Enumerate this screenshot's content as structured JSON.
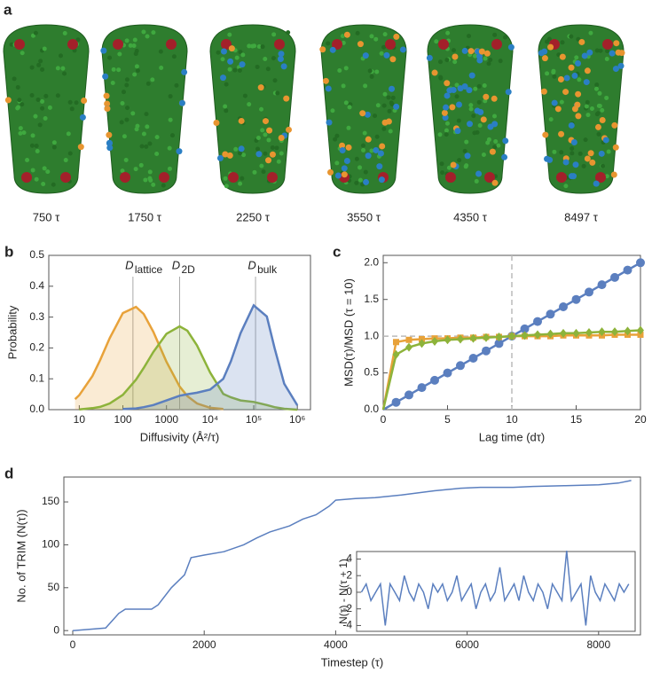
{
  "panel_a": {
    "panel_label": "a",
    "frames": [
      "750 τ",
      "1750 τ",
      "2250 τ",
      "3550 τ",
      "4350 τ",
      "8497 τ"
    ]
  },
  "chart_data": [
    {
      "type": "area",
      "panel_label": "b",
      "x_label": "Diffusivity (Å²/τ)",
      "y_label": "Probability",
      "xscale": "log",
      "xlim": [
        2,
        2000000
      ],
      "ylim": [
        0,
        0.5
      ],
      "xticks": [
        10,
        100,
        1000,
        {
          "value": 10000,
          "label": "10⁴"
        },
        {
          "value": 100000,
          "label": "10⁵"
        },
        {
          "value": 1000000,
          "label": "10⁶"
        }
      ],
      "yticks": [
        {
          "value": 0,
          "label": "0.0"
        },
        0.1,
        0.2,
        0.3,
        0.4,
        0.5
      ],
      "x": [
        8,
        10,
        20,
        30,
        50,
        100,
        200,
        300,
        500,
        1000,
        2000,
        3000,
        5000,
        10000,
        20000,
        30000,
        50000,
        100000,
        200000,
        300000,
        500000,
        1000000
      ],
      "series": [
        {
          "color": "#e8a23a",
          "values": [
            0.034,
            0.047,
            0.109,
            0.16,
            0.232,
            0.313,
            0.333,
            0.31,
            0.252,
            0.155,
            0.075,
            0.044,
            0.02,
            0.006,
            0.002,
            null,
            null,
            null,
            null,
            null,
            null,
            null
          ]
        },
        {
          "color": "#8db33a",
          "values": [
            null,
            0.001,
            0.005,
            0.009,
            0.02,
            0.048,
            0.097,
            0.135,
            0.187,
            0.246,
            0.27,
            0.256,
            0.208,
            0.12,
            0.051,
            0.04,
            0.03,
            0.025,
            0.015,
            0.008,
            0.003,
            0.0
          ]
        },
        {
          "color": "#5b7fbf",
          "values": [
            null,
            null,
            null,
            null,
            null,
            0.002,
            0.004,
            0.008,
            0.015,
            0.03,
            0.045,
            0.05,
            0.055,
            0.065,
            0.1,
            0.157,
            0.248,
            0.338,
            0.302,
            0.2,
            0.084,
            0.014
          ]
        }
      ],
      "reference_lines": [
        {
          "x": 170,
          "label": "D",
          "subscript": "lattice"
        },
        {
          "x": 2000,
          "label": "D",
          "subscript": "2D"
        },
        {
          "x": 110000,
          "label": "D",
          "subscript": "bulk"
        }
      ]
    },
    {
      "type": "line",
      "panel_label": "c",
      "x_label": "Lag time (dτ)",
      "y_label": "MSD(τ)/MSD (τ = 10)",
      "xlim": [
        0,
        20
      ],
      "ylim": [
        0,
        2.1
      ],
      "xticks": [
        0,
        5,
        10,
        15,
        20
      ],
      "yticks": [
        {
          "value": 0,
          "label": "0.0"
        },
        0.5,
        {
          "value": 1,
          "label": "1.0"
        },
        1.5,
        {
          "value": 2,
          "label": "2.0"
        }
      ],
      "x": [
        0,
        1,
        2,
        3,
        4,
        5,
        6,
        7,
        8,
        9,
        10,
        11,
        12,
        13,
        14,
        15,
        16,
        17,
        18,
        19,
        20
      ],
      "series": [
        {
          "color": "#5b7fbf",
          "marker": "circle",
          "values": [
            0,
            0.1,
            0.2,
            0.3,
            0.4,
            0.5,
            0.6,
            0.7,
            0.8,
            0.9,
            1.0,
            1.1,
            1.2,
            1.3,
            1.4,
            1.5,
            1.6,
            1.7,
            1.8,
            1.9,
            2.0
          ]
        },
        {
          "color": "#e8a23a",
          "marker": "square",
          "values": [
            0,
            0.92,
            0.95,
            0.96,
            0.97,
            0.97,
            0.98,
            0.98,
            0.99,
            0.99,
            1.0,
            1.0,
            1.0,
            1.0,
            1.01,
            1.01,
            1.01,
            1.01,
            1.02,
            1.02,
            1.02
          ]
        },
        {
          "color": "#8db33a",
          "marker": "diamond",
          "values": [
            0,
            0.75,
            0.85,
            0.9,
            0.93,
            0.95,
            0.96,
            0.97,
            0.98,
            0.99,
            1.0,
            1.01,
            1.02,
            1.03,
            1.04,
            1.04,
            1.05,
            1.06,
            1.06,
            1.07,
            1.08
          ]
        }
      ],
      "reference_lines": [
        {
          "x": 10
        },
        {
          "y": 1
        }
      ]
    },
    {
      "type": "line",
      "panel_label": "d",
      "x_label": "Timestep (τ)",
      "y_label": "No. of TRIM (N(τ))",
      "xlim": [
        -135,
        8637
      ],
      "ylim": [
        -5,
        179
      ],
      "xticks": [
        0,
        2000,
        4000,
        6000,
        8000
      ],
      "yticks": [
        0,
        50,
        100,
        150
      ],
      "color": "#5b7fbf",
      "x": [
        0,
        500,
        700,
        800,
        1200,
        1300,
        1500,
        1700,
        1800,
        2000,
        2300,
        2600,
        2800,
        3000,
        3300,
        3500,
        3700,
        3900,
        4000,
        4300,
        4600,
        5000,
        5500,
        5900,
        6200,
        6700,
        7000,
        7500,
        8000,
        8300,
        8497
      ],
      "values": [
        0,
        3,
        20,
        25,
        25,
        30,
        50,
        65,
        85,
        88,
        92,
        100,
        108,
        115,
        122,
        130,
        135,
        145,
        152,
        154,
        155,
        158,
        163,
        166,
        167,
        167,
        168,
        169,
        170,
        172,
        175
      ],
      "inset": {
        "type": "line",
        "y_label": "N(τ) - N(τ + 1)",
        "xlim": [
          -150,
          8600
        ],
        "ylim": [
          -4.7,
          4.9
        ],
        "yticks": [
          -4,
          -2,
          0,
          2,
          4
        ],
        "x": [
          0,
          150,
          300,
          450,
          600,
          750,
          900,
          1050,
          1200,
          1350,
          1500,
          1650,
          1800,
          1950,
          2100,
          2250,
          2400,
          2550,
          2700,
          2850,
          3000,
          3150,
          3300,
          3450,
          3600,
          3750,
          3900,
          4050,
          4200,
          4350,
          4500,
          4650,
          4800,
          4950,
          5100,
          5250,
          5400,
          5550,
          5700,
          5850,
          6000,
          6150,
          6300,
          6450,
          6600,
          6750,
          6900,
          7050,
          7200,
          7350,
          7500,
          7650,
          7800,
          7950,
          8100,
          8250,
          8400
        ],
        "values": [
          0,
          1,
          -1,
          0,
          1,
          -4,
          1,
          0,
          -1,
          2,
          0,
          -1,
          1,
          0,
          -2,
          1,
          0,
          1,
          -1,
          0,
          2,
          -1,
          0,
          1,
          -2,
          0,
          1,
          -1,
          0,
          3,
          -1,
          0,
          1,
          -1,
          2,
          0,
          -1,
          1,
          0,
          -2,
          1,
          0,
          -1,
          5,
          -1,
          0,
          1,
          -4,
          2,
          0,
          -1,
          1,
          0,
          -1,
          1,
          0,
          1
        ]
      }
    }
  ]
}
